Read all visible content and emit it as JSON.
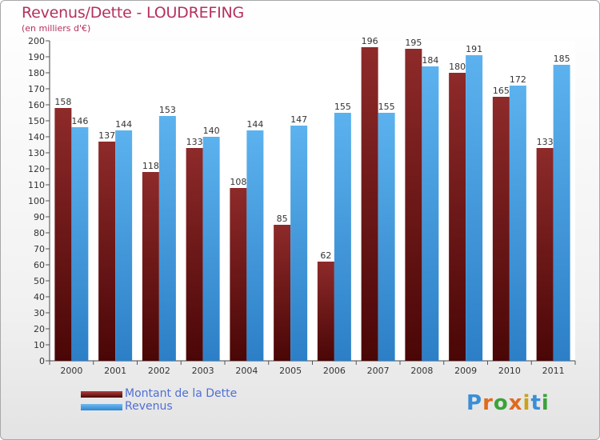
{
  "title": "Revenus/Dette - LOUDREFING",
  "subtitle": "(en milliers d'€)",
  "legend": [
    {
      "label": "Montant de la Dette",
      "color": "#7a1a1a"
    },
    {
      "label": "Revenus",
      "color": "#4a9fe0"
    }
  ],
  "logo_text": "Proxiti",
  "chart_data": {
    "type": "bar",
    "title": "Revenus/Dette - LOUDREFING",
    "ylabel": "(en milliers d'€)",
    "categories": [
      "2000",
      "2001",
      "2002",
      "2003",
      "2004",
      "2005",
      "2006",
      "2007",
      "2008",
      "2009",
      "2010",
      "2011"
    ],
    "series": [
      {
        "name": "Montant de la Dette",
        "values": [
          158,
          137,
          118,
          133,
          108,
          85,
          62,
          196,
          195,
          180,
          165,
          133
        ],
        "color": "#7a1a1a"
      },
      {
        "name": "Revenus",
        "values": [
          146,
          144,
          153,
          140,
          144,
          147,
          155,
          155,
          184,
          191,
          172,
          185
        ],
        "color": "#4a9fe0"
      }
    ],
    "ylim": [
      0,
      200
    ],
    "ytick_step": 10,
    "grid": false,
    "data_labels": true,
    "legend_position": "bottom-left"
  }
}
